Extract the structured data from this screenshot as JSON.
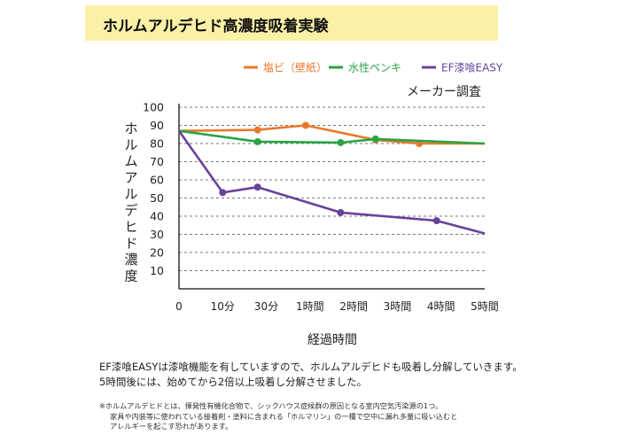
{
  "banner": {
    "title": "ホルムアルデヒド高濃度吸着実験"
  },
  "chart_data": {
    "type": "line",
    "categories": [
      "0",
      "10分",
      "30分",
      "1時間",
      "2時間",
      "3時間",
      "4時間",
      "5時間"
    ],
    "ylabel": "ホルムアルデヒド濃度",
    "xlabel": "経過時間",
    "annotation": "メーカー調査",
    "ylim": [
      0,
      100
    ],
    "yticks": [
      10,
      20,
      30,
      40,
      50,
      60,
      70,
      80,
      90,
      100
    ],
    "grid": true,
    "legend_position": "top",
    "series": [
      {
        "name": "塩ビ（壁紙）",
        "color": "#e8792b",
        "points": [
          [
            0,
            87
          ],
          [
            1.8,
            87.5
          ],
          [
            2.9,
            90
          ],
          [
            4.5,
            82
          ],
          [
            5.5,
            80
          ],
          [
            7,
            80
          ]
        ],
        "markers": [
          1.8,
          2.9,
          4.5,
          5.5
        ]
      },
      {
        "name": "水性ペンキ",
        "color": "#28a443",
        "points": [
          [
            0,
            87
          ],
          [
            1.8,
            81
          ],
          [
            3.7,
            80.5
          ],
          [
            4.5,
            82.5
          ],
          [
            7,
            80
          ]
        ],
        "markers": [
          1.8,
          3.7,
          4.5
        ]
      },
      {
        "name": "EF漆喰EASY",
        "color": "#67439b",
        "points": [
          [
            0,
            87
          ],
          [
            1.0,
            53
          ],
          [
            1.8,
            56
          ],
          [
            3.7,
            42
          ],
          [
            5.9,
            37.5
          ],
          [
            7,
            30.5
          ]
        ],
        "markers": [
          1.0,
          1.8,
          3.7,
          5.9
        ]
      }
    ]
  },
  "description": {
    "line1": "EF漆喰EASYは漆喰機能を有していますので、ホルムアルデヒドも吸着し分解していきます。",
    "line2": "5時間後には、始めてから2倍以上吸着し分解させました。"
  },
  "footnote": {
    "line1": "※ホルムアルデヒドとは、揮発性有機化合物で、シックハウス症候群の原因となる室内空気汚染源の1つ。",
    "line2": "家具や内装等に使われている接着剤・塗料に含まれる「ホルマリン」の一種で空中に漏れ多量に吸い込むと",
    "line3": "アレルギーを起こす恐れがあります。"
  }
}
